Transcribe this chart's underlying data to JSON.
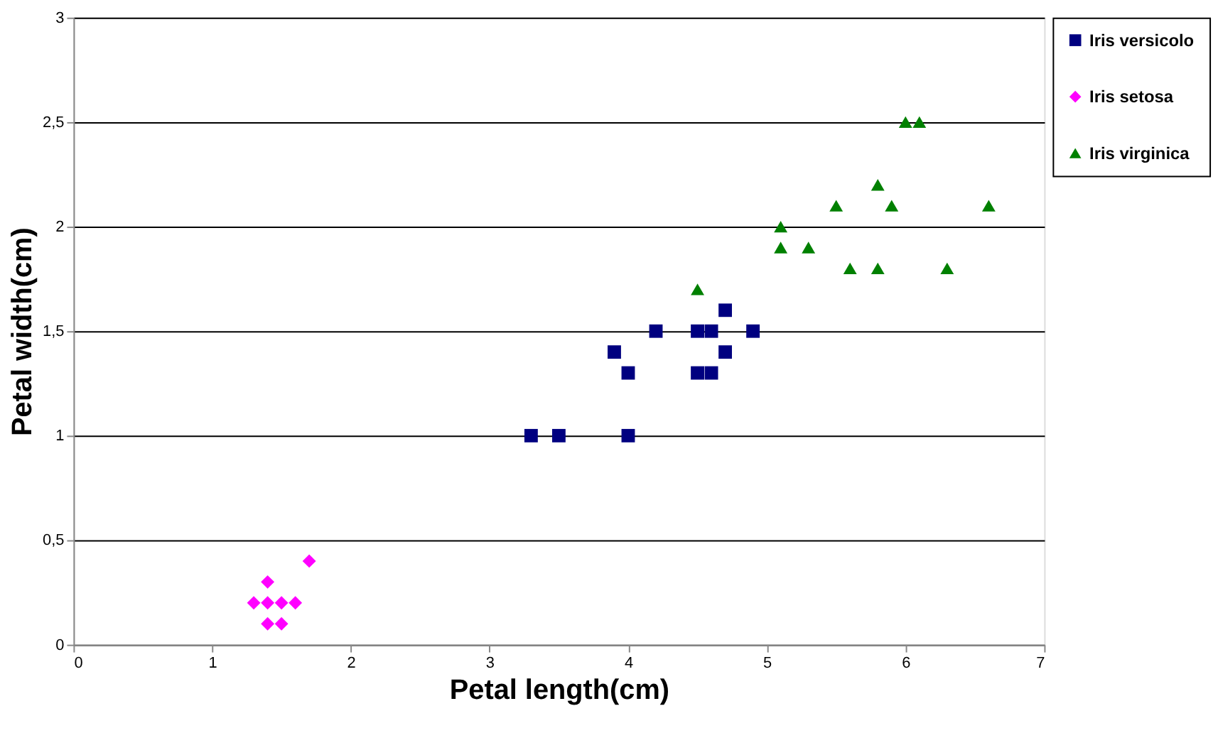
{
  "chart_data": {
    "type": "scatter",
    "xlabel": "Petal length(cm)",
    "ylabel": "Petal width(cm)",
    "xlim": [
      0,
      7
    ],
    "xticks": [
      0,
      1,
      2,
      3,
      4,
      5,
      6,
      7
    ],
    "ylim": [
      0,
      3
    ],
    "yticks": [
      0,
      {
        "value": 0.5,
        "label": "0,5"
      },
      1,
      {
        "value": 1.5,
        "label": "1,5"
      },
      2,
      {
        "value": 2.5,
        "label": "2,5"
      },
      3
    ],
    "grid": "y",
    "legend": "right",
    "series": [
      {
        "name": "Iris versicolo",
        "color": "#000080",
        "marker": "square",
        "x": [
          3.3,
          3.5,
          4.0,
          3.9,
          4.0,
          4.2,
          4.5,
          4.6,
          4.5,
          4.6,
          4.7,
          4.7,
          4.9
        ],
        "values": [
          1.0,
          1.0,
          1.0,
          1.4,
          1.3,
          1.5,
          1.5,
          1.5,
          1.3,
          1.3,
          1.4,
          1.6,
          1.5
        ]
      },
      {
        "name": "Iris setosa",
        "color": "#ff00ff",
        "marker": "diamond",
        "x": [
          1.3,
          1.4,
          1.5,
          1.6,
          1.4,
          1.4,
          1.5,
          1.7
        ],
        "values": [
          0.2,
          0.2,
          0.2,
          0.2,
          0.3,
          0.1,
          0.1,
          0.4
        ]
      },
      {
        "name": "Iris virginica",
        "color": "#008000",
        "marker": "triangle",
        "x": [
          4.5,
          5.1,
          5.1,
          5.3,
          5.5,
          5.6,
          5.8,
          5.8,
          5.9,
          6.0,
          6.1,
          6.3,
          6.6
        ],
        "values": [
          1.7,
          2.0,
          1.9,
          1.9,
          2.1,
          1.8,
          2.2,
          1.8,
          2.1,
          2.5,
          2.5,
          1.8,
          2.1
        ]
      }
    ]
  }
}
